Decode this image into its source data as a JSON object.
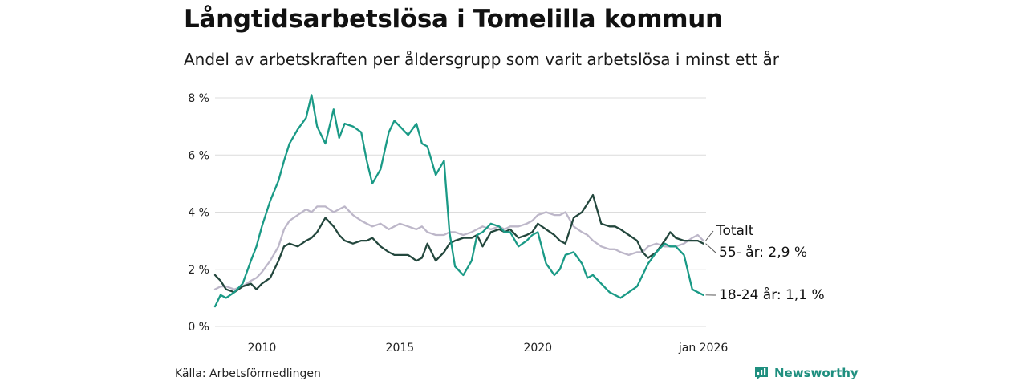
{
  "title": "Långtidsarbetslösa i Tomelilla kommun",
  "subtitle": "Andel av arbetskraften per åldersgrupp som varit arbetslösa i minst ett år",
  "source": "Källa: Arbetsförmedlingen",
  "brand": "Newsworthy",
  "colors": {
    "young": "#1a9a86",
    "older": "#23473d",
    "total": "#bdb7c9",
    "grid": "#dcdcdc"
  },
  "chart_data": {
    "type": "line",
    "title": "Långtidsarbetslösa i Tomelilla kommun",
    "ylabel": "",
    "xlabel": "",
    "ylim": [
      0,
      8
    ],
    "xlim": [
      2008.3,
      2026.1
    ],
    "y_ticks": [
      0,
      2,
      4,
      6,
      8
    ],
    "y_tick_labels": [
      "0 %",
      "2 %",
      "4 %",
      "6 %",
      "8 %"
    ],
    "x_ticks": [
      2010,
      2015,
      2020,
      2026
    ],
    "x_tick_labels": [
      "2010",
      "2015",
      "2020",
      "jan 2026"
    ],
    "series": [
      {
        "name": "Totalt",
        "label": "Totalt",
        "color_key": "total",
        "x": [
          2008.3,
          2008.5,
          2008.7,
          2009.0,
          2009.3,
          2009.6,
          2009.8,
          2010.0,
          2010.3,
          2010.6,
          2010.8,
          2011.0,
          2011.3,
          2011.6,
          2011.8,
          2012.0,
          2012.3,
          2012.6,
          2012.8,
          2013.0,
          2013.3,
          2013.6,
          2013.8,
          2014.0,
          2014.3,
          2014.6,
          2014.8,
          2015.0,
          2015.3,
          2015.6,
          2015.8,
          2016.0,
          2016.3,
          2016.6,
          2016.8,
          2017.0,
          2017.3,
          2017.6,
          2017.8,
          2018.0,
          2018.3,
          2018.6,
          2018.8,
          2019.0,
          2019.3,
          2019.6,
          2019.8,
          2020.0,
          2020.3,
          2020.6,
          2020.8,
          2021.0,
          2021.3,
          2021.6,
          2021.8,
          2022.0,
          2022.3,
          2022.6,
          2022.8,
          2023.0,
          2023.3,
          2023.6,
          2023.8,
          2024.0,
          2024.3,
          2024.6,
          2024.8,
          2025.0,
          2025.3,
          2025.6,
          2025.8,
          2026.0
        ],
        "values": [
          1.3,
          1.4,
          1.4,
          1.3,
          1.4,
          1.6,
          1.7,
          1.9,
          2.3,
          2.8,
          3.4,
          3.7,
          3.9,
          4.1,
          4.0,
          4.2,
          4.2,
          4.0,
          4.1,
          4.2,
          3.9,
          3.7,
          3.6,
          3.5,
          3.6,
          3.4,
          3.5,
          3.6,
          3.5,
          3.4,
          3.5,
          3.3,
          3.2,
          3.2,
          3.3,
          3.3,
          3.2,
          3.3,
          3.4,
          3.5,
          3.4,
          3.5,
          3.4,
          3.5,
          3.5,
          3.6,
          3.7,
          3.9,
          4.0,
          3.9,
          3.9,
          4.0,
          3.5,
          3.3,
          3.2,
          3.0,
          2.8,
          2.7,
          2.7,
          2.6,
          2.5,
          2.6,
          2.6,
          2.8,
          2.9,
          2.8,
          2.8,
          2.8,
          2.9,
          3.1,
          3.2,
          3.0
        ]
      },
      {
        "name": "55- år",
        "label": "55- år: 2,9 %",
        "color_key": "older",
        "x": [
          2008.3,
          2008.5,
          2008.7,
          2009.0,
          2009.3,
          2009.6,
          2009.8,
          2010.0,
          2010.3,
          2010.6,
          2010.8,
          2011.0,
          2011.3,
          2011.6,
          2011.8,
          2012.0,
          2012.3,
          2012.6,
          2012.8,
          2013.0,
          2013.3,
          2013.6,
          2013.8,
          2014.0,
          2014.3,
          2014.6,
          2014.8,
          2015.0,
          2015.3,
          2015.6,
          2015.8,
          2016.0,
          2016.3,
          2016.6,
          2016.8,
          2017.0,
          2017.3,
          2017.6,
          2017.8,
          2018.0,
          2018.3,
          2018.6,
          2018.8,
          2019.0,
          2019.3,
          2019.6,
          2019.8,
          2020.0,
          2020.3,
          2020.6,
          2020.8,
          2021.0,
          2021.3,
          2021.6,
          2021.8,
          2022.0,
          2022.3,
          2022.6,
          2022.8,
          2023.0,
          2023.3,
          2023.6,
          2023.8,
          2024.0,
          2024.3,
          2024.6,
          2024.8,
          2025.0,
          2025.3,
          2025.6,
          2025.8,
          2026.0
        ],
        "values": [
          1.8,
          1.6,
          1.3,
          1.2,
          1.4,
          1.5,
          1.3,
          1.5,
          1.7,
          2.3,
          2.8,
          2.9,
          2.8,
          3.0,
          3.1,
          3.3,
          3.8,
          3.5,
          3.2,
          3.0,
          2.9,
          3.0,
          3.0,
          3.1,
          2.8,
          2.6,
          2.5,
          2.5,
          2.5,
          2.3,
          2.4,
          2.9,
          2.3,
          2.6,
          2.9,
          3.0,
          3.1,
          3.1,
          3.2,
          2.8,
          3.3,
          3.4,
          3.3,
          3.4,
          3.1,
          3.2,
          3.3,
          3.6,
          3.4,
          3.2,
          3.0,
          2.9,
          3.8,
          4.0,
          4.3,
          4.6,
          3.6,
          3.5,
          3.5,
          3.4,
          3.2,
          3.0,
          2.6,
          2.4,
          2.6,
          3.0,
          3.3,
          3.1,
          3.0,
          3.0,
          3.0,
          2.9
        ]
      },
      {
        "name": "18-24 år",
        "label": "18-24 år: 1,1 %",
        "color_key": "young",
        "x": [
          2008.3,
          2008.5,
          2008.7,
          2009.0,
          2009.3,
          2009.6,
          2009.8,
          2010.0,
          2010.3,
          2010.6,
          2010.8,
          2011.0,
          2011.3,
          2011.6,
          2011.8,
          2012.0,
          2012.3,
          2012.6,
          2012.8,
          2013.0,
          2013.3,
          2013.6,
          2013.8,
          2014.0,
          2014.3,
          2014.6,
          2014.8,
          2015.0,
          2015.3,
          2015.6,
          2015.8,
          2016.0,
          2016.3,
          2016.6,
          2016.8,
          2017.0,
          2017.3,
          2017.6,
          2017.8,
          2018.0,
          2018.3,
          2018.6,
          2018.8,
          2019.0,
          2019.3,
          2019.6,
          2019.8,
          2020.0,
          2020.3,
          2020.6,
          2020.8,
          2021.0,
          2021.3,
          2021.6,
          2021.8,
          2022.0,
          2022.3,
          2022.6,
          2022.8,
          2023.0,
          2023.3,
          2023.6,
          2023.8,
          2024.0,
          2024.3,
          2024.6,
          2024.8,
          2025.0,
          2025.3,
          2025.6,
          2025.8,
          2026.0
        ],
        "values": [
          0.7,
          1.1,
          1.0,
          1.2,
          1.5,
          2.3,
          2.8,
          3.5,
          4.4,
          5.1,
          5.8,
          6.4,
          6.9,
          7.3,
          8.1,
          7.0,
          6.4,
          7.6,
          6.6,
          7.1,
          7.0,
          6.8,
          5.8,
          5.0,
          5.5,
          6.8,
          7.2,
          7.0,
          6.7,
          7.1,
          6.4,
          6.3,
          5.3,
          5.8,
          3.3,
          2.1,
          1.8,
          2.3,
          3.2,
          3.3,
          3.6,
          3.5,
          3.3,
          3.3,
          2.8,
          3.0,
          3.2,
          3.3,
          2.2,
          1.8,
          2.0,
          2.5,
          2.6,
          2.2,
          1.7,
          1.8,
          1.5,
          1.2,
          1.1,
          1.0,
          1.2,
          1.4,
          1.8,
          2.2,
          2.6,
          2.9,
          2.8,
          2.8,
          2.5,
          1.3,
          1.2,
          1.1
        ]
      }
    ]
  }
}
